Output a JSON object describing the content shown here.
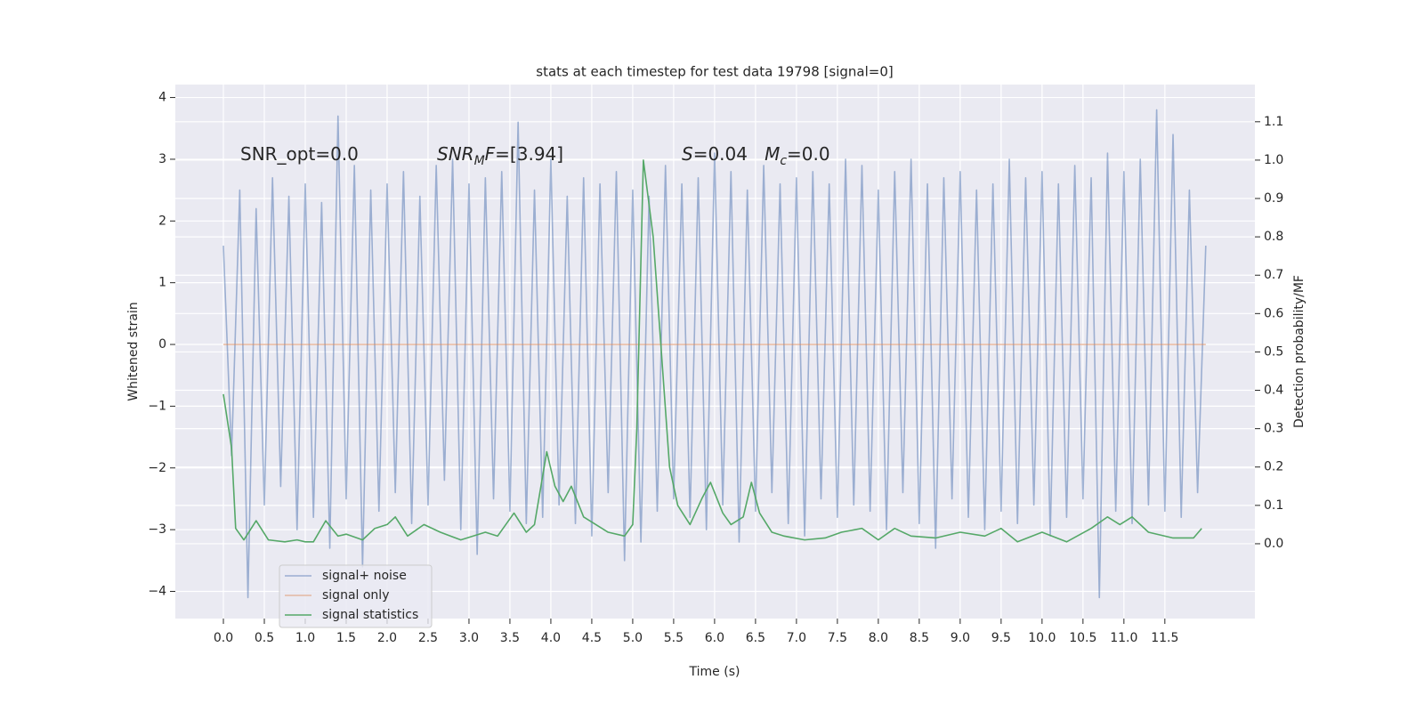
{
  "chart_data": {
    "type": "line",
    "title": "stats at each timestep for test data 19798 [signal=0]",
    "xlabel": "Time (s)",
    "ylabel": "Whitened strain",
    "y2label": "Detection probability/MF",
    "xlim": [
      -0.587,
      12.6
    ],
    "ylim": [
      -4.44,
      4.21
    ],
    "y2lim": [
      -0.195,
      1.197
    ],
    "grid": true,
    "legend": "lower left",
    "xticks": [
      {
        "value": 0,
        "label": "0.0"
      },
      0.5,
      {
        "value": 1,
        "label": "1.0"
      },
      1.5,
      {
        "value": 2,
        "label": "2.0"
      },
      2.5,
      {
        "value": 3,
        "label": "3.0"
      },
      3.5,
      {
        "value": 4,
        "label": "4.0"
      },
      4.5,
      {
        "value": 5,
        "label": "5.0"
      },
      5.5,
      {
        "value": 6,
        "label": "6.0"
      },
      6.5,
      {
        "value": 7,
        "label": "7.0"
      },
      7.5,
      {
        "value": 8,
        "label": "8.0"
      },
      8.5,
      {
        "value": 9,
        "label": "9.0"
      },
      9.5,
      {
        "value": 10,
        "label": "10.0"
      },
      10.5,
      {
        "value": 11,
        "label": "11.0"
      },
      11.5
    ],
    "yticks": [
      {
        "value": -4,
        "label": "−4"
      },
      {
        "value": -3,
        "label": "−3"
      },
      {
        "value": -2,
        "label": "−2"
      },
      {
        "value": -1,
        "label": "−1"
      },
      0,
      1,
      2,
      3,
      4
    ],
    "y2ticks": [
      {
        "value": 0,
        "label": "0.0"
      },
      0.1,
      0.2,
      0.3,
      0.4,
      0.5,
      0.6,
      0.7,
      0.8,
      0.9,
      {
        "value": 1,
        "label": "1.0"
      },
      1.1
    ],
    "annotations": [
      [
        {
          "text": "SNR_opt=0.0"
        }
      ],
      [
        {
          "text": "SNR",
          "italic": true
        },
        {
          "text": "M",
          "italic": true,
          "sub": true
        },
        {
          "text": "F",
          "italic": true
        },
        {
          "text": "=[3.94]"
        }
      ],
      [
        {
          "text": "S",
          "italic": true
        },
        {
          "text": "=0.04   "
        },
        {
          "text": "M",
          "italic": true
        },
        {
          "text": "c",
          "italic": true,
          "sub": true
        },
        {
          "text": "=0.0"
        }
      ]
    ],
    "series": [
      {
        "name": "signal+ noise",
        "color": "#4c72b0",
        "alpha": 0.5,
        "x": [
          0.0,
          0.1,
          0.2,
          0.3,
          0.4,
          0.5,
          0.6,
          0.7,
          0.8,
          0.9,
          1.0,
          1.1,
          1.2,
          1.3,
          1.4,
          1.5,
          1.6,
          1.7,
          1.8,
          1.9,
          2.0,
          2.1,
          2.2,
          2.3,
          2.4,
          2.5,
          2.6,
          2.7,
          2.8,
          2.9,
          3.0,
          3.1,
          3.2,
          3.3,
          3.4,
          3.5,
          3.6,
          3.7,
          3.8,
          3.9,
          4.0,
          4.1,
          4.2,
          4.3,
          4.4,
          4.5,
          4.6,
          4.7,
          4.8,
          4.9,
          5.0,
          5.1,
          5.2,
          5.3,
          5.4,
          5.5,
          5.6,
          5.7,
          5.8,
          5.9,
          6.0,
          6.1,
          6.2,
          6.3,
          6.4,
          6.5,
          6.6,
          6.7,
          6.8,
          6.9,
          7.0,
          7.1,
          7.2,
          7.3,
          7.4,
          7.5,
          7.6,
          7.7,
          7.8,
          7.9,
          8.0,
          8.1,
          8.2,
          8.3,
          8.4,
          8.5,
          8.6,
          8.7,
          8.8,
          8.9,
          9.0,
          9.1,
          9.2,
          9.3,
          9.4,
          9.5,
          9.6,
          9.7,
          9.8,
          9.9,
          10.0,
          10.1,
          10.2,
          10.3,
          10.4,
          10.5,
          10.6,
          10.7,
          10.8,
          10.9,
          11.0,
          11.1,
          11.2,
          11.3,
          11.4,
          11.5,
          11.6,
          11.7,
          11.8,
          11.9,
          12.0
        ],
        "values": [
          1.6,
          -1.8,
          2.5,
          -4.1,
          2.2,
          -2.6,
          2.7,
          -2.3,
          2.4,
          -3.0,
          2.6,
          -2.8,
          2.3,
          -3.3,
          3.7,
          -2.5,
          2.9,
          -3.6,
          2.5,
          -2.7,
          2.6,
          -2.4,
          2.8,
          -2.9,
          2.4,
          -2.6,
          2.9,
          -2.2,
          3.0,
          -3.0,
          2.6,
          -3.4,
          2.7,
          -2.5,
          2.8,
          -2.7,
          3.6,
          -2.9,
          2.5,
          -2.8,
          3.0,
          -2.6,
          2.4,
          -2.9,
          2.7,
          -3.1,
          2.6,
          -2.4,
          2.8,
          -3.5,
          2.5,
          -3.2,
          2.4,
          -2.7,
          2.9,
          -2.5,
          2.6,
          -2.8,
          2.7,
          -3.0,
          3.1,
          -2.6,
          2.8,
          -3.2,
          2.5,
          -2.7,
          2.9,
          -2.4,
          2.6,
          -2.9,
          2.7,
          -3.1,
          2.8,
          -2.5,
          2.6,
          -2.8,
          3.0,
          -2.6,
          2.9,
          -2.7,
          2.5,
          -3.0,
          2.8,
          -2.4,
          3.0,
          -2.9,
          2.6,
          -3.3,
          2.7,
          -2.5,
          2.8,
          -2.8,
          2.5,
          -3.0,
          2.6,
          -2.7,
          3.0,
          -2.9,
          2.7,
          -2.6,
          2.8,
          -3.1,
          2.6,
          -2.8,
          2.9,
          -2.5,
          2.7,
          -4.1,
          3.1,
          -2.7,
          2.8,
          -2.9,
          3.0,
          -2.6,
          3.8,
          -2.7,
          3.4,
          -2.8,
          2.5,
          -2.4,
          1.6
        ]
      },
      {
        "name": "signal only",
        "color": "#dd8452",
        "alpha": 0.5,
        "x": [
          0.0,
          12.0
        ],
        "values": [
          0,
          0
        ]
      },
      {
        "name": "signal statistics",
        "color": "#55a868",
        "alpha": 1,
        "axis": "y2",
        "x": [
          0.0,
          0.1,
          0.15,
          0.25,
          0.4,
          0.55,
          0.75,
          0.9,
          1.0,
          1.1,
          1.25,
          1.4,
          1.5,
          1.7,
          1.85,
          2.0,
          2.1,
          2.25,
          2.45,
          2.65,
          2.9,
          3.2,
          3.35,
          3.55,
          3.7,
          3.8,
          3.95,
          4.05,
          4.15,
          4.25,
          4.4,
          4.7,
          4.9,
          5.0,
          5.05,
          5.13,
          5.25,
          5.35,
          5.45,
          5.55,
          5.7,
          5.85,
          5.95,
          6.1,
          6.2,
          6.35,
          6.45,
          6.55,
          6.7,
          6.85,
          7.1,
          7.35,
          7.55,
          7.8,
          8.0,
          8.2,
          8.4,
          8.7,
          9.0,
          9.3,
          9.5,
          9.7,
          10.0,
          10.3,
          10.6,
          10.8,
          10.95,
          11.1,
          11.3,
          11.6,
          11.85,
          11.95
        ],
        "values": [
          0.39,
          0.25,
          0.04,
          0.01,
          0.06,
          0.01,
          0.005,
          0.01,
          0.005,
          0.005,
          0.06,
          0.02,
          0.025,
          0.01,
          0.04,
          0.05,
          0.07,
          0.02,
          0.05,
          0.03,
          0.01,
          0.03,
          0.02,
          0.08,
          0.03,
          0.05,
          0.24,
          0.15,
          0.11,
          0.15,
          0.07,
          0.03,
          0.02,
          0.05,
          0.3,
          1.0,
          0.8,
          0.5,
          0.2,
          0.1,
          0.05,
          0.12,
          0.16,
          0.08,
          0.05,
          0.07,
          0.16,
          0.08,
          0.03,
          0.02,
          0.01,
          0.015,
          0.03,
          0.04,
          0.01,
          0.04,
          0.02,
          0.015,
          0.03,
          0.02,
          0.04,
          0.005,
          0.03,
          0.005,
          0.04,
          0.07,
          0.05,
          0.07,
          0.03,
          0.015,
          0.015,
          0.04
        ]
      }
    ]
  }
}
